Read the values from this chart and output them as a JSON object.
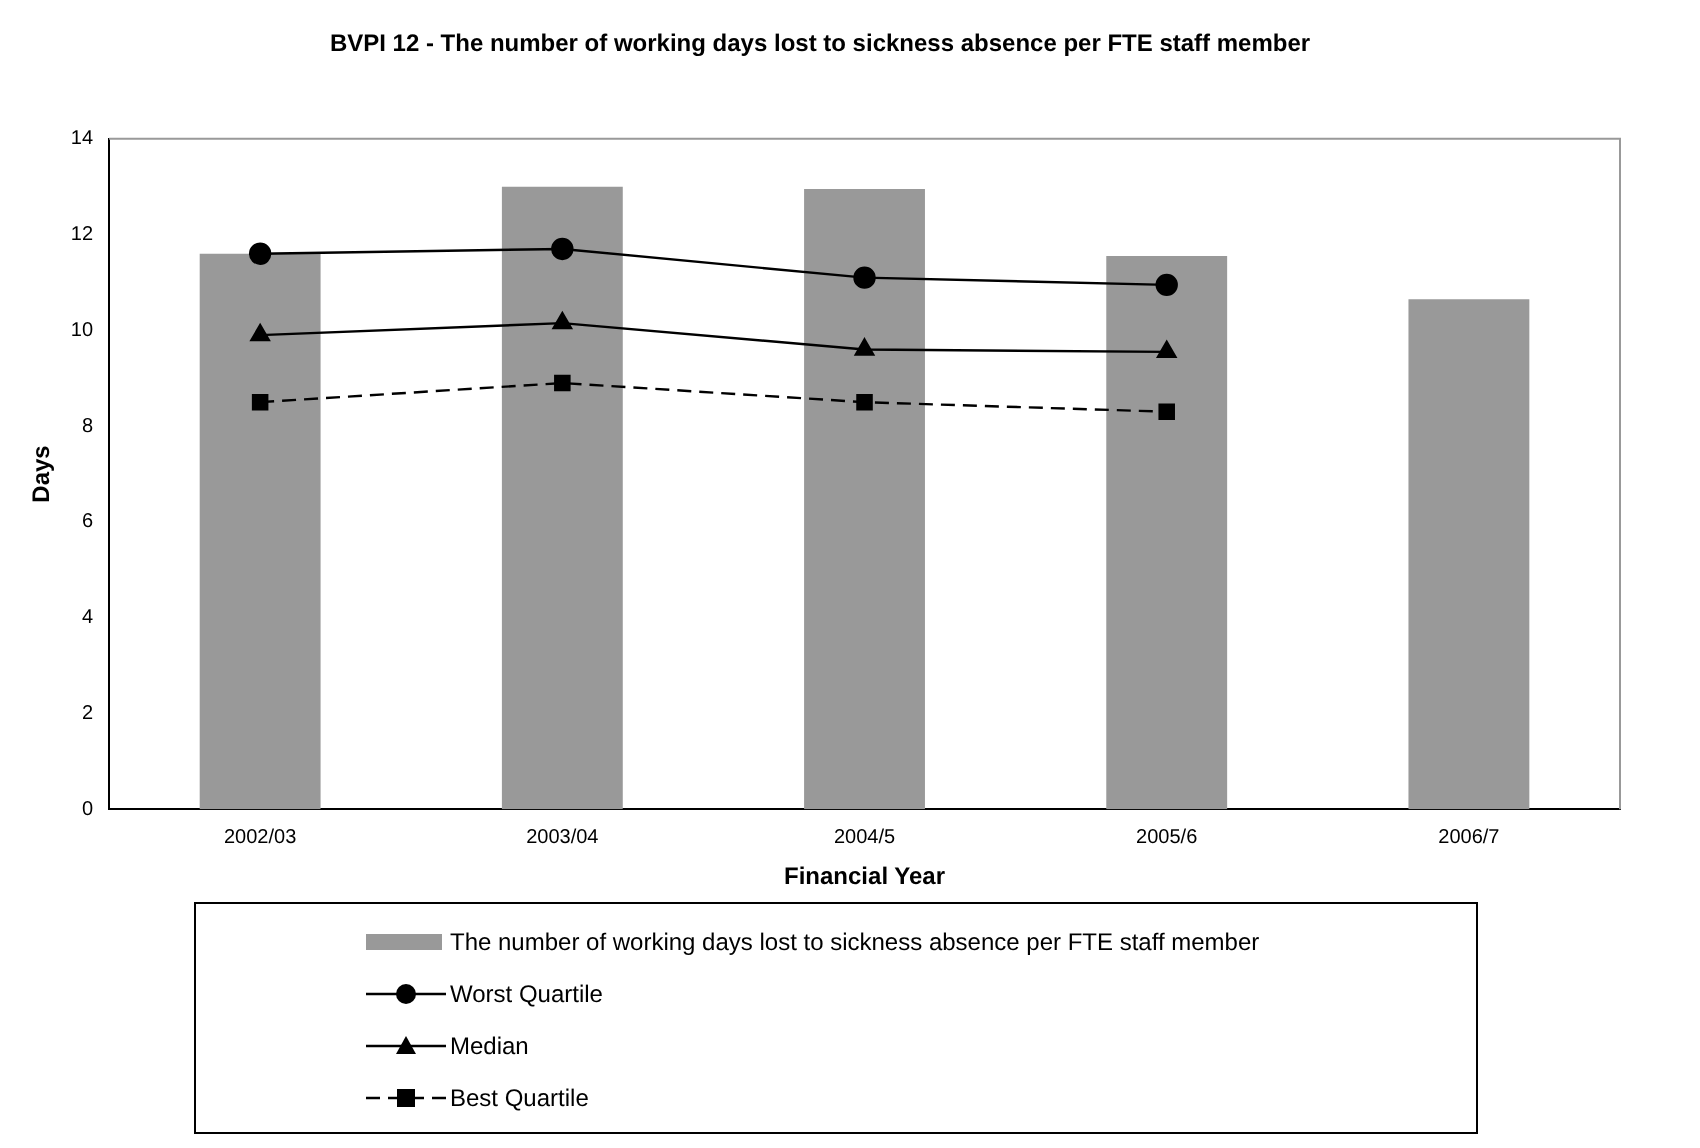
{
  "chart_data": {
    "type": "bar",
    "title": "BVPI 12 - The number of working days lost to sickness absence per FTE staff member",
    "xlabel": "Financial Year",
    "ylabel": "Days",
    "categories": [
      "2002/03",
      "2003/04",
      "2004/5",
      "2005/6",
      "2006/7"
    ],
    "series": [
      {
        "name": "The number of working days lost to sickness absence per FTE staff member",
        "color": "#999999",
        "values": [
          11.6,
          13.0,
          12.95,
          11.55,
          10.65
        ]
      },
      {
        "name": "Worst Quartile",
        "type": "line",
        "color": "#000000",
        "marker": "circle",
        "line_style": "solid",
        "values": [
          11.6,
          11.7,
          11.1,
          10.95,
          null
        ]
      },
      {
        "name": "Median",
        "type": "line",
        "color": "#000000",
        "marker": "triangle",
        "line_style": "solid",
        "values": [
          9.9,
          10.15,
          9.6,
          9.55,
          null
        ]
      },
      {
        "name": "Best Quartile",
        "type": "line",
        "color": "#000000",
        "marker": "square",
        "line_style": "dashed",
        "values": [
          8.5,
          8.9,
          8.5,
          8.3,
          null
        ]
      }
    ],
    "ylim": [
      0,
      14
    ],
    "yticks": [
      0,
      2,
      4,
      6,
      8,
      10,
      12,
      14
    ],
    "grid": false,
    "legend": "bottom"
  }
}
